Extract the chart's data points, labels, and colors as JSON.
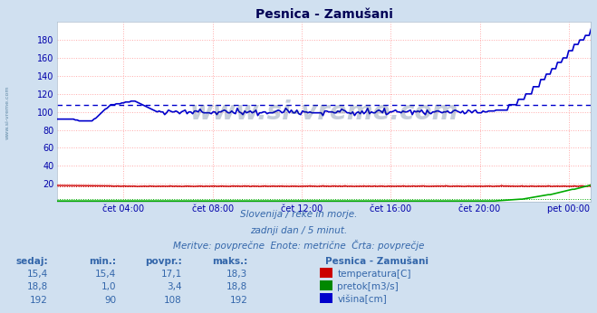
{
  "title": "Pesnica - Zamušani",
  "bg_color": "#d0e0f0",
  "plot_bg_color": "#ffffff",
  "grid_color": "#ffaaaa",
  "xlabel_color": "#0000aa",
  "ylabel_color": "#0000aa",
  "tick_labels": [
    "čet 04:00",
    "čet 08:00",
    "čet 12:00",
    "čet 16:00",
    "čet 20:00",
    "pet 00:00"
  ],
  "tick_positions_norm": [
    0.125,
    0.2917,
    0.4583,
    0.625,
    0.7917,
    0.9583
  ],
  "ylim": [
    0,
    200
  ],
  "ytick_vals": [
    20,
    40,
    60,
    80,
    100,
    120,
    140,
    160,
    180
  ],
  "avg_line_value": 108,
  "avg_line_color": "#0000cc",
  "temp_color": "#cc0000",
  "flow_color": "#00aa00",
  "height_color": "#0000cc",
  "watermark_text": "www.si-vreme.com",
  "watermark_color": "#1a3a6e",
  "watermark_alpha": 0.25,
  "side_watermark_color": "#336688",
  "subtitle1": "Slovenija / reke in morje.",
  "subtitle2": "zadnji dan / 5 minut.",
  "subtitle3": "Meritve: povprečne  Enote: metrične  Črta: povprečje",
  "subtitle_color": "#3366aa",
  "legend_title": "Pesnica - Zamušani",
  "legend_items": [
    "temperatura[C]",
    "pretok[m3/s]",
    "višina[cm]"
  ],
  "legend_colors": [
    "#cc0000",
    "#008800",
    "#0000cc"
  ],
  "table_headers": [
    "sedaj:",
    "min.:",
    "povpr.:",
    "maks.:"
  ],
  "table_data": [
    [
      "15,4",
      "15,4",
      "17,1",
      "18,3"
    ],
    [
      "18,8",
      "1,0",
      "3,4",
      "18,8"
    ],
    [
      "192",
      "90",
      "108",
      "192"
    ]
  ],
  "table_color": "#3366aa",
  "n_points": 288
}
